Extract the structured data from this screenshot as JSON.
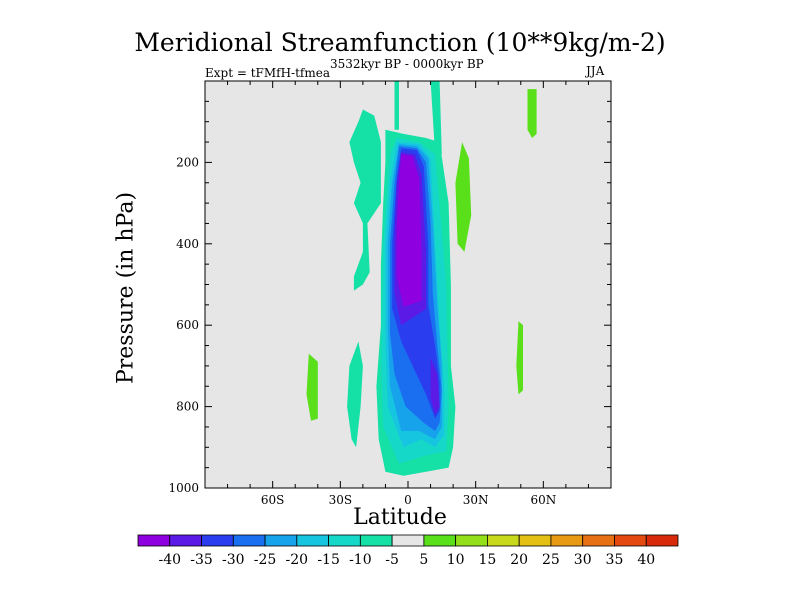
{
  "chart_data": {
    "type": "heatmap",
    "title": "Meridional Streamfunction (10**9kg/m-2)",
    "experiment_label": "Expt = tFMfH-tfmea",
    "period_label": "3532kyr BP - 0000kyr BP",
    "season_label": "JJA",
    "xlabel": "Latitude",
    "ylabel": "Pressure (in hPa)",
    "xlim": [
      -90,
      90
    ],
    "ylim": [
      1000,
      0
    ],
    "x_ticks": [
      {
        "value": -60,
        "label": "60S"
      },
      {
        "value": -30,
        "label": "30S"
      },
      {
        "value": 0,
        "label": "0"
      },
      {
        "value": 30,
        "label": "30N"
      },
      {
        "value": 60,
        "label": "60N"
      }
    ],
    "y_ticks": [
      {
        "value": 200,
        "label": "200"
      },
      {
        "value": 400,
        "label": "400"
      },
      {
        "value": 600,
        "label": "600"
      },
      {
        "value": 800,
        "label": "800"
      },
      {
        "value": 1000,
        "label": "1000"
      }
    ],
    "background_color": "#e6e6e6",
    "colorbar": {
      "labels": [
        "-40",
        "-35",
        "-30",
        "-25",
        "-20",
        "-15",
        "-10",
        "-5",
        "5",
        "10",
        "15",
        "20",
        "25",
        "30",
        "35",
        "40"
      ],
      "colors": [
        "#8e00e0",
        "#5b1ae6",
        "#2a3ef0",
        "#1a6ff0",
        "#17a2ec",
        "#16c5e0",
        "#16d8c8",
        "#15e0a6",
        "#e6e6e6",
        "#5ae01a",
        "#93e01a",
        "#c8d81a",
        "#e4c014",
        "#e89a14",
        "#e87014",
        "#e44a10",
        "#d82a0a"
      ]
    },
    "regions": [
      {
        "value": "-5",
        "color": "#15e0a6",
        "points": [
          [
            -20,
            70
          ],
          [
            -15,
            85
          ],
          [
            -12,
            150
          ],
          [
            -12,
            300
          ],
          [
            -18,
            350
          ],
          [
            -17,
            470
          ],
          [
            -20,
            500
          ],
          [
            -24,
            515
          ],
          [
            -24,
            480
          ],
          [
            -20,
            420
          ],
          [
            -20,
            350
          ],
          [
            -24,
            300
          ],
          [
            -21,
            250
          ],
          [
            -24,
            200
          ],
          [
            -26,
            150
          ],
          [
            -22,
            100
          ]
        ]
      },
      {
        "value": "-5",
        "color": "#15e0a6",
        "points": [
          [
            -6,
            0
          ],
          [
            -4,
            0
          ],
          [
            -4,
            120
          ],
          [
            -6,
            120
          ]
        ]
      },
      {
        "value": "-5",
        "color": "#15e0a6",
        "points": [
          [
            10,
            0
          ],
          [
            14,
            0
          ],
          [
            15,
            180
          ],
          [
            12,
            180
          ]
        ]
      },
      {
        "value": "-5",
        "color": "#15e0a6",
        "points": [
          [
            -22,
            640
          ],
          [
            -26,
            700
          ],
          [
            -27,
            800
          ],
          [
            -25,
            880
          ],
          [
            -23,
            900
          ],
          [
            -21,
            800
          ],
          [
            -20,
            700
          ]
        ]
      },
      {
        "value": "-5",
        "color": "#15e0a6",
        "points": [
          [
            -10,
            120
          ],
          [
            -2,
            130
          ],
          [
            8,
            140
          ],
          [
            14,
            150
          ],
          [
            18,
            300
          ],
          [
            19,
            500
          ],
          [
            19,
            700
          ],
          [
            21,
            800
          ],
          [
            20,
            900
          ],
          [
            18,
            950
          ],
          [
            8,
            960
          ],
          [
            -2,
            970
          ],
          [
            -10,
            960
          ],
          [
            -13,
            880
          ],
          [
            -14,
            750
          ],
          [
            -12,
            600
          ],
          [
            -12,
            450
          ],
          [
            -11,
            300
          ],
          [
            -10,
            200
          ]
        ]
      },
      {
        "value": "-10",
        "color": "#16d8c8",
        "points": [
          [
            -5,
            140
          ],
          [
            5,
            150
          ],
          [
            12,
            180
          ],
          [
            17,
            500
          ],
          [
            18,
            800
          ],
          [
            17,
            910
          ],
          [
            8,
            920
          ],
          [
            -4,
            940
          ],
          [
            -11,
            850
          ],
          [
            -12,
            700
          ],
          [
            -11,
            400
          ],
          [
            -9,
            250
          ],
          [
            -8,
            180
          ]
        ]
      },
      {
        "value": "-15",
        "color": "#16c5e0",
        "points": [
          [
            -5,
            150
          ],
          [
            5,
            155
          ],
          [
            10,
            190
          ],
          [
            12,
            400
          ],
          [
            14,
            600
          ],
          [
            16,
            750
          ],
          [
            16,
            870
          ],
          [
            12,
            900
          ],
          [
            6,
            880
          ],
          [
            -2,
            900
          ],
          [
            -9,
            800
          ],
          [
            -10,
            650
          ],
          [
            -10,
            400
          ],
          [
            -8,
            250
          ]
        ]
      },
      {
        "value": "-20",
        "color": "#17a2ec",
        "points": [
          [
            -4,
            155
          ],
          [
            4,
            160
          ],
          [
            9,
            190
          ],
          [
            11,
            350
          ],
          [
            13,
            550
          ],
          [
            15,
            700
          ],
          [
            15,
            850
          ],
          [
            12,
            880
          ],
          [
            5,
            860
          ],
          [
            -3,
            860
          ],
          [
            -8,
            750
          ],
          [
            -9,
            600
          ],
          [
            -9,
            400
          ],
          [
            -7,
            250
          ]
        ]
      },
      {
        "value": "-25",
        "color": "#1a6ff0",
        "points": [
          [
            -4,
            160
          ],
          [
            4,
            165
          ],
          [
            8,
            200
          ],
          [
            10,
            350
          ],
          [
            11,
            520
          ],
          [
            13,
            650
          ],
          [
            15,
            760
          ],
          [
            14,
            840
          ],
          [
            12,
            860
          ],
          [
            7,
            840
          ],
          [
            -1,
            800
          ],
          [
            -6,
            720
          ],
          [
            -8,
            620
          ],
          [
            -8,
            400
          ],
          [
            -6,
            250
          ]
        ]
      },
      {
        "value": "-30",
        "color": "#2a3ef0",
        "points": [
          [
            -3,
            165
          ],
          [
            4,
            170
          ],
          [
            7,
            210
          ],
          [
            9,
            400
          ],
          [
            9,
            550
          ],
          [
            12,
            650
          ],
          [
            14,
            740
          ],
          [
            14,
            810
          ],
          [
            12,
            830
          ],
          [
            8,
            770
          ],
          [
            -3,
            640
          ],
          [
            -7,
            560
          ],
          [
            -7,
            400
          ],
          [
            -5,
            240
          ]
        ]
      },
      {
        "value": "-35",
        "color": "#5b1ae6",
        "points": [
          [
            -3,
            175
          ],
          [
            3,
            180
          ],
          [
            6,
            230
          ],
          [
            8,
            420
          ],
          [
            8,
            560
          ],
          [
            -3,
            600
          ],
          [
            -6,
            520
          ],
          [
            -6,
            380
          ],
          [
            -5,
            250
          ]
        ]
      },
      {
        "value": "-35",
        "color": "#5b1ae6",
        "points": [
          [
            10,
            680
          ],
          [
            13,
            720
          ],
          [
            14,
            800
          ],
          [
            12,
            820
          ],
          [
            10,
            780
          ]
        ]
      },
      {
        "value": "-40",
        "color": "#8e00e0",
        "points": [
          [
            -3,
            180
          ],
          [
            2,
            185
          ],
          [
            5,
            240
          ],
          [
            6,
            420
          ],
          [
            6,
            540
          ],
          [
            -2,
            555
          ],
          [
            -5,
            480
          ],
          [
            -5,
            360
          ],
          [
            -4,
            250
          ]
        ]
      },
      {
        "value": "10",
        "color": "#5ae01a",
        "points": [
          [
            24,
            150
          ],
          [
            27,
            190
          ],
          [
            28,
            330
          ],
          [
            25,
            420
          ],
          [
            22,
            400
          ],
          [
            21,
            250
          ]
        ]
      },
      {
        "value": "10",
        "color": "#5ae01a",
        "points": [
          [
            53,
            20
          ],
          [
            57,
            20
          ],
          [
            57,
            130
          ],
          [
            55,
            140
          ],
          [
            53,
            120
          ]
        ]
      },
      {
        "value": "10",
        "color": "#5ae01a",
        "points": [
          [
            49,
            590
          ],
          [
            51,
            600
          ],
          [
            51,
            760
          ],
          [
            49,
            770
          ],
          [
            48,
            700
          ]
        ]
      },
      {
        "value": "10",
        "color": "#5ae01a",
        "points": [
          [
            -44,
            670
          ],
          [
            -40,
            690
          ],
          [
            -40,
            830
          ],
          [
            -43,
            835
          ],
          [
            -45,
            770
          ]
        ]
      }
    ]
  }
}
